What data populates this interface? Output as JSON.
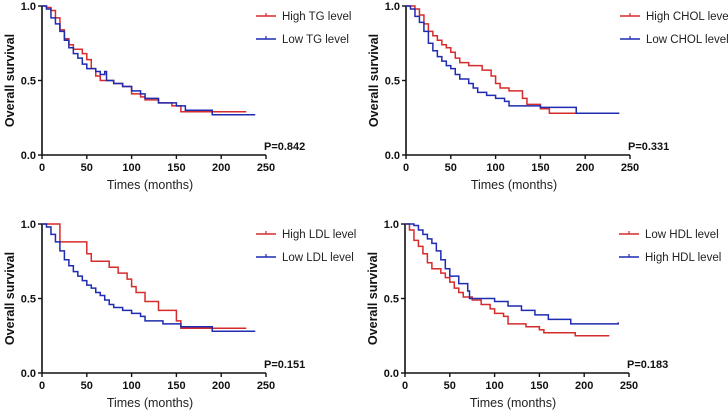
{
  "chart_data": [
    {
      "type": "line",
      "xlabel": "Times (months)",
      "ylabel": "Overall survival",
      "xlim": [
        0,
        250
      ],
      "ylim": [
        0,
        1
      ],
      "xticks": [
        "0",
        "50",
        "100",
        "150",
        "200",
        "250"
      ],
      "yticks": [
        "0.0",
        "0.5",
        "1.0"
      ],
      "annotation": "P=0.842",
      "legend_position": "top-right",
      "series": [
        {
          "name": "High TG level",
          "color": "#d62b2b",
          "points": [
            [
              0,
              1
            ],
            [
              5,
              0.99
            ],
            [
              10,
              0.97
            ],
            [
              15,
              0.92
            ],
            [
              20,
              0.84
            ],
            [
              25,
              0.78
            ],
            [
              30,
              0.74
            ],
            [
              35,
              0.71
            ],
            [
              45,
              0.68
            ],
            [
              50,
              0.64
            ],
            [
              55,
              0.58
            ],
            [
              60,
              0.53
            ],
            [
              65,
              0.5
            ],
            [
              80,
              0.48
            ],
            [
              90,
              0.46
            ],
            [
              100,
              0.41
            ],
            [
              110,
              0.39
            ],
            [
              115,
              0.37
            ],
            [
              130,
              0.35
            ],
            [
              145,
              0.33
            ],
            [
              155,
              0.29
            ],
            [
              228,
              0.29
            ]
          ]
        },
        {
          "name": "Low TG level",
          "color": "#1f2bb0",
          "points": [
            [
              0,
              1
            ],
            [
              5,
              0.98
            ],
            [
              10,
              0.92
            ],
            [
              15,
              0.88
            ],
            [
              20,
              0.83
            ],
            [
              25,
              0.77
            ],
            [
              30,
              0.72
            ],
            [
              35,
              0.68
            ],
            [
              40,
              0.65
            ],
            [
              45,
              0.61
            ],
            [
              50,
              0.58
            ],
            [
              60,
              0.56
            ],
            [
              65,
              0.54
            ],
            [
              70,
              0.56
            ],
            [
              72,
              0.5
            ],
            [
              80,
              0.48
            ],
            [
              90,
              0.46
            ],
            [
              100,
              0.43
            ],
            [
              110,
              0.41
            ],
            [
              115,
              0.38
            ],
            [
              130,
              0.35
            ],
            [
              150,
              0.33
            ],
            [
              160,
              0.3
            ],
            [
              190,
              0.27
            ],
            [
              238,
              0.27
            ]
          ]
        }
      ]
    },
    {
      "type": "line",
      "xlabel": "Times (months)",
      "ylabel": "Overall survival",
      "xlim": [
        0,
        250
      ],
      "ylim": [
        0,
        1
      ],
      "xticks": [
        "0",
        "50",
        "100",
        "150",
        "200",
        "250"
      ],
      "yticks": [
        "0.0",
        "0.5",
        "1.0"
      ],
      "annotation": "P=0.331",
      "legend_position": "top-right",
      "series": [
        {
          "name": "High CHOL level",
          "color": "#d62b2b",
          "points": [
            [
              0,
              1
            ],
            [
              10,
              0.98
            ],
            [
              15,
              0.94
            ],
            [
              20,
              0.88
            ],
            [
              25,
              0.83
            ],
            [
              30,
              0.8
            ],
            [
              35,
              0.77
            ],
            [
              40,
              0.74
            ],
            [
              45,
              0.72
            ],
            [
              50,
              0.69
            ],
            [
              55,
              0.65
            ],
            [
              60,
              0.62
            ],
            [
              70,
              0.6
            ],
            [
              85,
              0.57
            ],
            [
              95,
              0.53
            ],
            [
              100,
              0.48
            ],
            [
              105,
              0.45
            ],
            [
              115,
              0.43
            ],
            [
              130,
              0.38
            ],
            [
              135,
              0.34
            ],
            [
              150,
              0.31
            ],
            [
              160,
              0.28
            ],
            [
              238,
              0.28
            ]
          ]
        },
        {
          "name": "Low CHOL level",
          "color": "#1f2bb0",
          "points": [
            [
              0,
              1
            ],
            [
              5,
              0.98
            ],
            [
              10,
              0.93
            ],
            [
              15,
              0.89
            ],
            [
              20,
              0.83
            ],
            [
              25,
              0.75
            ],
            [
              30,
              0.7
            ],
            [
              35,
              0.66
            ],
            [
              40,
              0.63
            ],
            [
              45,
              0.6
            ],
            [
              50,
              0.58
            ],
            [
              55,
              0.54
            ],
            [
              60,
              0.51
            ],
            [
              70,
              0.48
            ],
            [
              75,
              0.45
            ],
            [
              80,
              0.42
            ],
            [
              90,
              0.4
            ],
            [
              100,
              0.38
            ],
            [
              110,
              0.36
            ],
            [
              115,
              0.33
            ],
            [
              150,
              0.32
            ],
            [
              190,
              0.28
            ],
            [
              238,
              0.28
            ]
          ]
        }
      ]
    },
    {
      "type": "line",
      "xlabel": "Times (months)",
      "ylabel": "Overall survival",
      "xlim": [
        0,
        250
      ],
      "ylim": [
        0,
        1
      ],
      "xticks": [
        "0",
        "50",
        "100",
        "150",
        "200",
        "250"
      ],
      "yticks": [
        "0.0",
        "0.5",
        "1.0"
      ],
      "annotation": "P=0.151",
      "legend_position": "top-right",
      "series": [
        {
          "name": "High LDL level",
          "color": "#d62b2b",
          "points": [
            [
              0,
              1
            ],
            [
              20,
              0.88
            ],
            [
              50,
              0.8
            ],
            [
              55,
              0.75
            ],
            [
              75,
              0.71
            ],
            [
              85,
              0.67
            ],
            [
              95,
              0.63
            ],
            [
              100,
              0.58
            ],
            [
              105,
              0.54
            ],
            [
              115,
              0.48
            ],
            [
              130,
              0.42
            ],
            [
              150,
              0.35
            ],
            [
              155,
              0.3
            ],
            [
              228,
              0.3
            ]
          ]
        },
        {
          "name": "Low LDL level",
          "color": "#1f2bb0",
          "points": [
            [
              0,
              1
            ],
            [
              5,
              0.98
            ],
            [
              10,
              0.93
            ],
            [
              15,
              0.88
            ],
            [
              20,
              0.82
            ],
            [
              25,
              0.76
            ],
            [
              30,
              0.72
            ],
            [
              35,
              0.68
            ],
            [
              40,
              0.65
            ],
            [
              45,
              0.62
            ],
            [
              50,
              0.59
            ],
            [
              55,
              0.57
            ],
            [
              60,
              0.54
            ],
            [
              65,
              0.52
            ],
            [
              70,
              0.49
            ],
            [
              75,
              0.46
            ],
            [
              80,
              0.44
            ],
            [
              90,
              0.42
            ],
            [
              100,
              0.4
            ],
            [
              110,
              0.38
            ],
            [
              115,
              0.35
            ],
            [
              135,
              0.33
            ],
            [
              155,
              0.31
            ],
            [
              190,
              0.28
            ],
            [
              238,
              0.28
            ]
          ]
        }
      ]
    },
    {
      "type": "line",
      "xlabel": "Times (months)",
      "ylabel": "Overall survival",
      "xlim": [
        0,
        250
      ],
      "ylim": [
        0,
        1
      ],
      "xticks": [
        "0",
        "50",
        "100",
        "150",
        "200",
        "250"
      ],
      "yticks": [
        "0.0",
        "0.5",
        "1.0"
      ],
      "annotation": "P=0.183",
      "legend_position": "top-right",
      "series": [
        {
          "name": "Low HDL level",
          "color": "#d62b2b",
          "points": [
            [
              0,
              1
            ],
            [
              5,
              0.96
            ],
            [
              10,
              0.89
            ],
            [
              15,
              0.85
            ],
            [
              20,
              0.8
            ],
            [
              25,
              0.74
            ],
            [
              30,
              0.7
            ],
            [
              40,
              0.67
            ],
            [
              45,
              0.64
            ],
            [
              50,
              0.61
            ],
            [
              55,
              0.57
            ],
            [
              60,
              0.54
            ],
            [
              65,
              0.51
            ],
            [
              75,
              0.49
            ],
            [
              85,
              0.46
            ],
            [
              95,
              0.43
            ],
            [
              100,
              0.4
            ],
            [
              110,
              0.38
            ],
            [
              115,
              0.33
            ],
            [
              135,
              0.31
            ],
            [
              150,
              0.29
            ],
            [
              155,
              0.27
            ],
            [
              190,
              0.25
            ],
            [
              228,
              0.25
            ]
          ]
        },
        {
          "name": "High HDL level",
          "color": "#1f2bb0",
          "points": [
            [
              0,
              1
            ],
            [
              10,
              0.99
            ],
            [
              15,
              0.96
            ],
            [
              20,
              0.93
            ],
            [
              25,
              0.9
            ],
            [
              30,
              0.87
            ],
            [
              35,
              0.82
            ],
            [
              40,
              0.76
            ],
            [
              45,
              0.7
            ],
            [
              50,
              0.65
            ],
            [
              60,
              0.6
            ],
            [
              70,
              0.55
            ],
            [
              72,
              0.5
            ],
            [
              100,
              0.48
            ],
            [
              115,
              0.45
            ],
            [
              130,
              0.42
            ],
            [
              145,
              0.39
            ],
            [
              160,
              0.36
            ],
            [
              185,
              0.33
            ],
            [
              238,
              0.34
            ]
          ]
        }
      ]
    }
  ]
}
